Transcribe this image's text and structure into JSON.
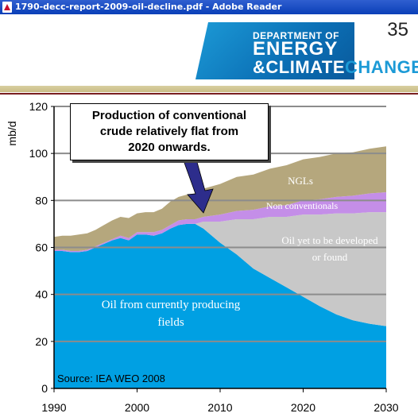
{
  "window": {
    "title": "1790-decc-report-2009-oil-decline.pdf - Adobe Reader"
  },
  "slide": {
    "page_number": "35",
    "logo": {
      "line1": "DEPARTMENT OF",
      "line2": "ENERGY",
      "line3a": "&CLIMATE",
      "line3b": "CHANGE"
    }
  },
  "callout": {
    "line1": "Production of conventional",
    "line2": "crude relatively flat from",
    "line3": "2020 onwards."
  },
  "chart_data": {
    "type": "area",
    "ylabel": "mb/d",
    "ylim": [
      0,
      120
    ],
    "yticks": [
      0,
      20,
      40,
      60,
      80,
      100,
      120
    ],
    "xticks": [
      1990,
      2000,
      2010,
      2020,
      2030
    ],
    "xlim": [
      1990,
      2030
    ],
    "grid": "horizontal",
    "source": "Source: IEA WEO 2008",
    "x": [
      1990,
      1991,
      1992,
      1993,
      1994,
      1995,
      1996,
      1997,
      1998,
      1999,
      2000,
      2001,
      2002,
      2003,
      2004,
      2005,
      2006,
      2007,
      2008,
      2010,
      2012,
      2014,
      2016,
      2018,
      2020,
      2022,
      2024,
      2026,
      2028,
      2030
    ],
    "series": [
      {
        "name": "Oil from currently producing fields",
        "color": "#00a0e3",
        "values": [
          58.5,
          58.5,
          58,
          58,
          58.5,
          60,
          61.5,
          63,
          64,
          63,
          65.5,
          65.5,
          65,
          66,
          68,
          69.5,
          70,
          70,
          68,
          62,
          57,
          51,
          47,
          43,
          39,
          35,
          31.5,
          29,
          27.5,
          26.5
        ]
      },
      {
        "name": "Oil yet to be developed or found",
        "color": "#c8c8c8",
        "values": [
          0,
          0,
          0,
          0,
          0,
          0,
          0,
          0,
          0,
          0,
          0,
          0,
          0,
          0,
          0,
          0,
          0,
          0,
          3,
          9,
          15,
          21,
          26,
          30,
          35,
          39,
          43,
          45.5,
          47.5,
          48.5
        ]
      },
      {
        "name": "Non conventionals",
        "color": "#c48ee8",
        "values": [
          0.5,
          0.5,
          0.5,
          0.5,
          0.5,
          0.5,
          0.5,
          0.5,
          1,
          1,
          1,
          1,
          1.5,
          1.5,
          1.5,
          2,
          2,
          2,
          2,
          3,
          3.5,
          4,
          4.5,
          5,
          6,
          6.5,
          7,
          7.5,
          8,
          8.5
        ]
      },
      {
        "name": "NGLs",
        "color": "#b5a77d",
        "values": [
          5.5,
          6,
          6.5,
          7,
          7,
          7,
          7.5,
          8,
          8,
          8.5,
          8,
          8.5,
          8.5,
          9,
          10,
          10,
          10.5,
          11,
          12,
          13,
          14.5,
          15,
          16,
          17,
          17.5,
          18,
          18.5,
          18.5,
          19,
          19.5
        ]
      }
    ],
    "labels": {
      "ngl": "NGLs",
      "nonconv": "Non conventionals",
      "oil_future_1": "Oil yet to be developed",
      "oil_future_2": "or found",
      "oil_current_1": "Oil from currently producing",
      "oil_current_2": "fields"
    }
  }
}
